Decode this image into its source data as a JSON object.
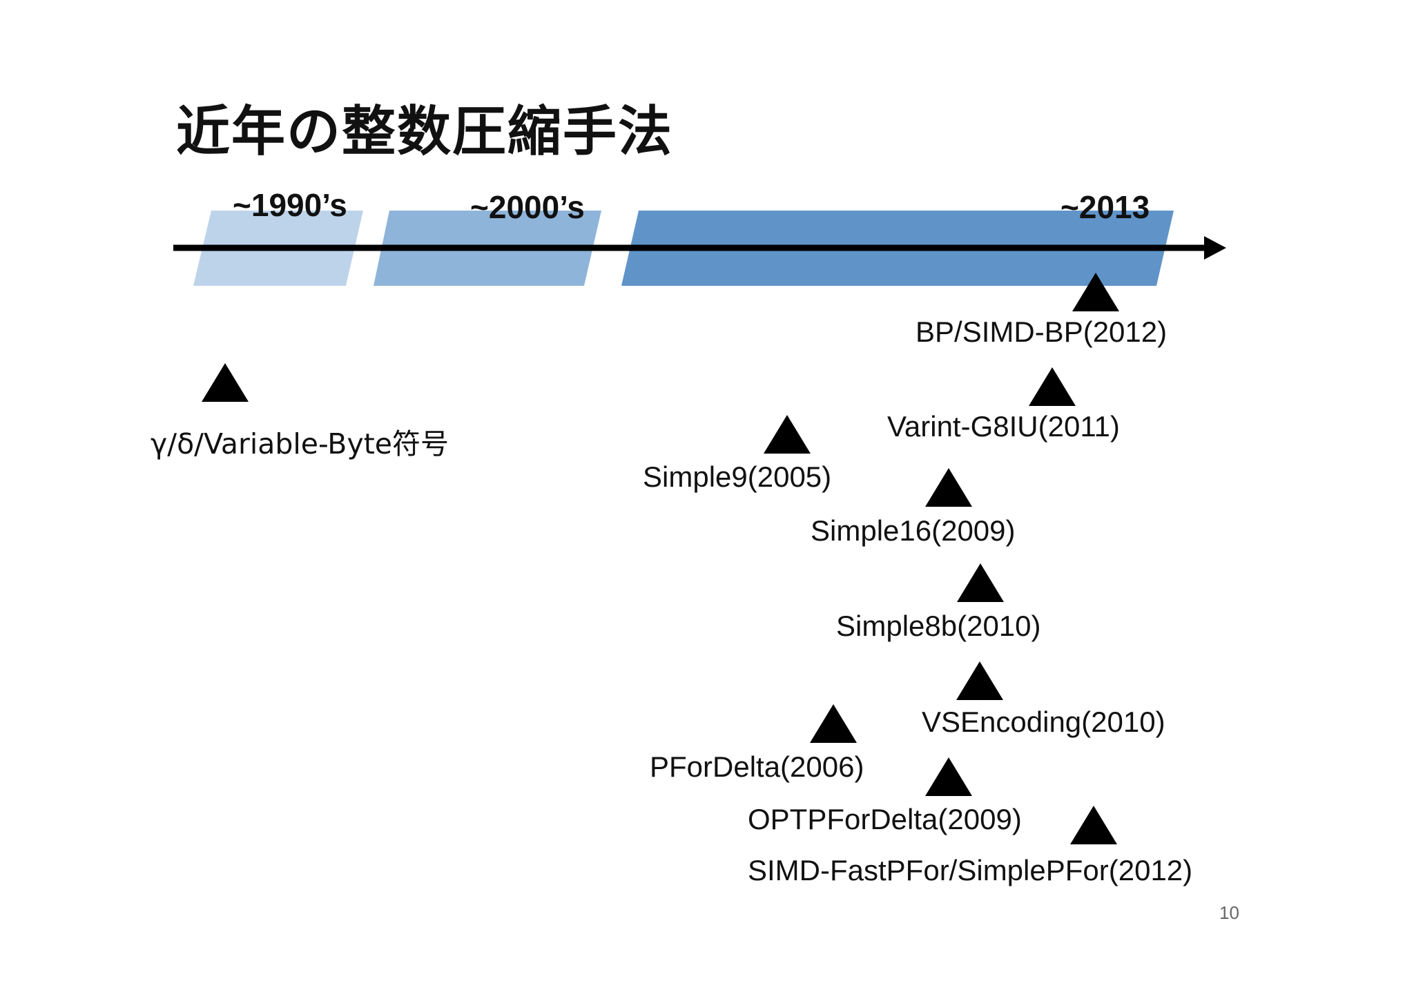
{
  "title": "近年の整数圧縮手法",
  "eras": [
    "~1990’s",
    "~2000’s",
    "~2013"
  ],
  "colors": {
    "band_1990s": "#bdd3ea",
    "band_2000s": "#8fb4d9",
    "band_2013": "#6094c9",
    "arrow": "#000000"
  },
  "methods": [
    "BP/SIMD-BP(2012)",
    "Varint-G8IU(2011)",
    "γ/δ/Variable-Byte符号",
    "Simple9(2005)",
    "Simple16(2009)",
    "Simple8b(2010)",
    "VSEncoding(2010)",
    "PForDelta(2006)",
    "OPTPForDelta(2009)",
    "SIMD-FastPFor/SimplePFor(2012)"
  ],
  "page_number": "10"
}
